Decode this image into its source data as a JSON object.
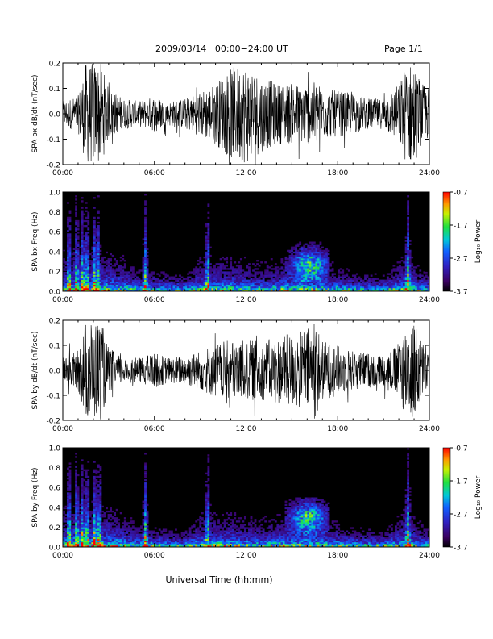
{
  "header": {
    "title": "2009/03/14   00:00−24:00 UT",
    "page": "Page 1/1"
  },
  "footer": {
    "xlabel": "Universal Time (hh:mm)"
  },
  "colors": {
    "background": "#ffffff",
    "trace": "#000000",
    "spectrogram_background": "#000000"
  },
  "chart_data": [
    {
      "type": "line",
      "panel": "bx-dbdt",
      "ylabel": "SPA bx dB/dt (nT/sec)",
      "x_ticks": [
        "00:00",
        "06:00",
        "12:00",
        "18:00",
        "24:00"
      ],
      "y_ticks": [
        "-0.2",
        "-0.1",
        "0.0",
        "0.1",
        "0.2"
      ],
      "xlim_hours": [
        0,
        24
      ],
      "ylim": [
        -0.2,
        0.2
      ],
      "amplitude_envelope": {
        "x": [
          0,
          1,
          1.5,
          2,
          2.5,
          3,
          4,
          5,
          6,
          7,
          8,
          9,
          10,
          11,
          12,
          13,
          14,
          15,
          16,
          16.5,
          17,
          18,
          19,
          20,
          21,
          22,
          22.5,
          23,
          23.5,
          24
        ],
        "y": [
          0.05,
          0.07,
          0.2,
          0.2,
          0.2,
          0.1,
          0.06,
          0.05,
          0.07,
          0.05,
          0.06,
          0.09,
          0.12,
          0.18,
          0.2,
          0.15,
          0.12,
          0.12,
          0.12,
          0.14,
          0.1,
          0.09,
          0.08,
          0.06,
          0.06,
          0.12,
          0.2,
          0.2,
          0.12,
          0.1
        ]
      }
    },
    {
      "type": "heatmap",
      "panel": "bx-freq",
      "ylabel": "SPA bx Freq (Hz)",
      "x_ticks": [
        "00:00",
        "06:00",
        "12:00",
        "18:00",
        "24:00"
      ],
      "y_ticks": [
        "0.0",
        "0.2",
        "0.4",
        "0.6",
        "0.8",
        "1.0"
      ],
      "xlim_hours": [
        0,
        24
      ],
      "ylim": [
        0,
        1.0
      ],
      "colorbar": {
        "label": "Log₁₀ Power",
        "ticks": [
          "-0.7",
          "-1.7",
          "-2.7",
          "-3.7"
        ],
        "range": [
          -3.7,
          -0.7
        ]
      },
      "features": {
        "vertical_bursts_hours": [
          0.4,
          0.9,
          1.3,
          1.6,
          2.1,
          2.3,
          5.4,
          9.5,
          22.6
        ],
        "enhanced_patch": {
          "time_hours": [
            14.5,
            17.5
          ],
          "freq_hz": [
            0.1,
            0.5
          ],
          "peak_hours": 16.2,
          "peak_freq_hz": 0.27
        }
      }
    },
    {
      "type": "line",
      "panel": "by-dbdt",
      "ylabel": "SPA by dB/dt (nT/sec)",
      "x_ticks": [
        "00:00",
        "06:00",
        "12:00",
        "18:00",
        "24:00"
      ],
      "y_ticks": [
        "-0.2",
        "-0.1",
        "0.0",
        "0.1",
        "0.2"
      ],
      "xlim_hours": [
        0,
        24
      ],
      "ylim": [
        -0.2,
        0.2
      ],
      "amplitude_envelope": {
        "x": [
          0,
          1,
          1.5,
          2,
          2.5,
          3,
          4,
          5,
          6,
          7,
          8,
          9,
          10,
          11,
          12,
          13,
          14,
          15,
          16,
          16.5,
          17,
          18,
          19,
          20,
          21,
          22,
          22.5,
          23,
          23.5,
          24
        ],
        "y": [
          0.05,
          0.08,
          0.2,
          0.2,
          0.2,
          0.09,
          0.05,
          0.05,
          0.07,
          0.05,
          0.06,
          0.08,
          0.11,
          0.12,
          0.12,
          0.12,
          0.13,
          0.15,
          0.17,
          0.2,
          0.12,
          0.1,
          0.08,
          0.07,
          0.06,
          0.11,
          0.2,
          0.2,
          0.12,
          0.1
        ]
      }
    },
    {
      "type": "heatmap",
      "panel": "by-freq",
      "ylabel": "SPA by Freq (Hz)",
      "x_ticks": [
        "00:00",
        "06:00",
        "12:00",
        "18:00",
        "24:00"
      ],
      "y_ticks": [
        "0.0",
        "0.2",
        "0.4",
        "0.6",
        "0.8",
        "1.0"
      ],
      "xlim_hours": [
        0,
        24
      ],
      "ylim": [
        0,
        1.0
      ],
      "colorbar": {
        "label": "Log₁₀ Power",
        "ticks": [
          "-0.7",
          "-1.7",
          "-2.7",
          "-3.7"
        ],
        "range": [
          -3.7,
          -0.7
        ]
      },
      "features": {
        "vertical_bursts_hours": [
          0.4,
          0.9,
          1.3,
          1.6,
          2.1,
          2.4,
          5.4,
          9.5,
          22.6
        ],
        "enhanced_patch": {
          "time_hours": [
            14.5,
            17.5
          ],
          "freq_hz": [
            0.1,
            0.5
          ],
          "peak_hours": 16.1,
          "peak_freq_hz": 0.3
        }
      }
    }
  ]
}
